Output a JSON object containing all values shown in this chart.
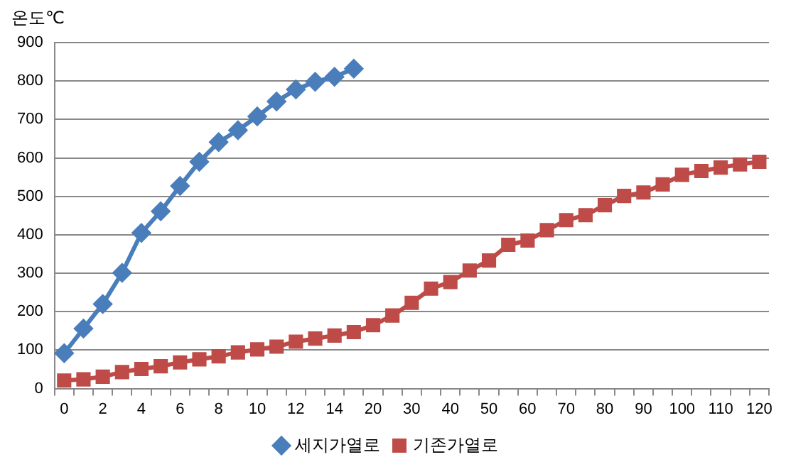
{
  "chart_data": {
    "type": "line",
    "ylabel": "온도℃",
    "categories": [
      "0",
      null,
      "2",
      null,
      "4",
      null,
      "6",
      null,
      "8",
      null,
      "10",
      null,
      "12",
      null,
      "14",
      null,
      "20",
      null,
      "30",
      null,
      "40",
      null,
      "50",
      null,
      "60",
      null,
      "70",
      null,
      "80",
      null,
      "90",
      null,
      "100",
      null,
      "110",
      null,
      "120"
    ],
    "series": [
      {
        "name": "세지가열로",
        "color": "#4a7ebb",
        "marker": "diamond",
        "values": [
          92,
          156,
          220,
          301,
          405,
          461,
          527,
          590,
          641,
          672,
          708,
          747,
          778,
          798,
          811,
          832,
          null,
          null,
          null,
          null,
          null,
          null,
          null,
          null,
          null,
          null,
          null,
          null,
          null,
          null,
          null,
          null,
          null,
          null,
          null,
          null,
          null
        ]
      },
      {
        "name": "기존가열로",
        "color": "#be4b48",
        "marker": "square",
        "values": [
          21,
          24,
          31,
          43,
          51,
          58,
          68,
          76,
          84,
          94,
          102,
          109,
          122,
          130,
          138,
          147,
          165,
          190,
          223,
          260,
          277,
          307,
          333,
          374,
          385,
          412,
          438,
          451,
          477,
          501,
          510,
          531,
          556,
          566,
          575,
          583,
          590
        ]
      }
    ],
    "ylim": [
      0,
      900
    ],
    "yticks": [
      0,
      100,
      200,
      300,
      400,
      500,
      600,
      700,
      800,
      900
    ],
    "grid": "y",
    "legend": "bottom"
  }
}
